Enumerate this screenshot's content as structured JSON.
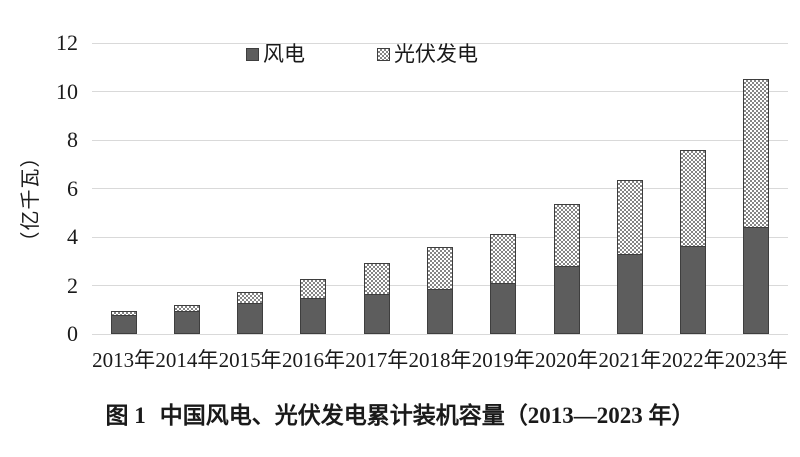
{
  "figure": {
    "number": "图 1",
    "caption": "中国风电、光伏发电累计装机容量（2013—2023 年）"
  },
  "chart_data": {
    "type": "bar",
    "stacked": true,
    "title": "中国风电、光伏发电累计装机容量（2013—2023 年）",
    "categories": [
      "2013年",
      "2014年",
      "2015年",
      "2016年",
      "2017年",
      "2018年",
      "2019年",
      "2020年",
      "2021年",
      "2022年",
      "2023年"
    ],
    "series": [
      {
        "key": "wind",
        "name": "风电",
        "values": [
          0.77,
          0.96,
          1.29,
          1.49,
          1.64,
          1.84,
          2.1,
          2.82,
          3.28,
          3.65,
          4.41
        ]
      },
      {
        "key": "solar",
        "name": "光伏发电",
        "values": [
          0.16,
          0.25,
          0.43,
          0.78,
          1.3,
          1.74,
          2.04,
          2.53,
          3.06,
          3.93,
          6.09
        ]
      }
    ],
    "xlabel": "",
    "ylabel": "（亿千瓦）",
    "ylim": [
      0,
      12
    ],
    "yticks": [
      0,
      2,
      4,
      6,
      8,
      10,
      12
    ],
    "grid": true,
    "legend_position": "top",
    "colors": {
      "wind_fill": "#5d5d5d",
      "solar_pattern_dot": "#858585",
      "solar_pattern_bg": "#ffffff",
      "bar_border": "#3e3e3e",
      "gridline": "#d9d9d9",
      "text": "#1a1a1a",
      "background": "#ffffff"
    }
  }
}
